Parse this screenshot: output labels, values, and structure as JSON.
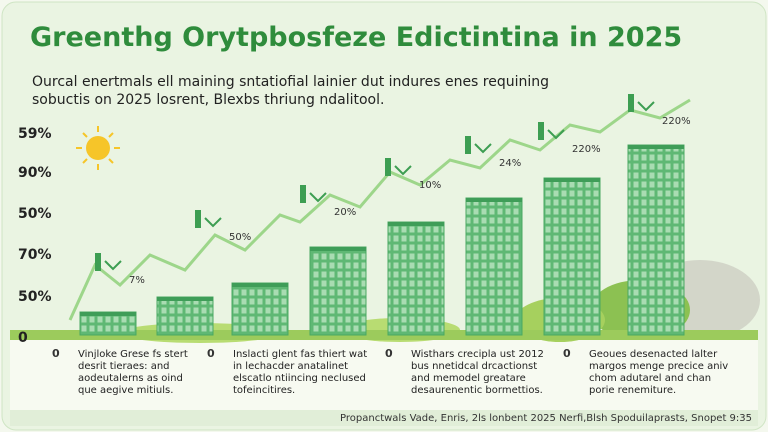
{
  "header": {
    "title": "Greenthg Orytpbosfeze Edictintina in 2025",
    "subtitle": [
      "Ourcal enertmals ell maining sntatiofial lainier dut indures enes requining",
      "sobuctis on 2025 losrent, Blexbs thriung ndalitool."
    ]
  },
  "axis_labels": [
    "59%",
    "90%",
    "50%",
    "70%",
    "50%",
    "0"
  ],
  "annotations": [
    "7%",
    "50%",
    "20%",
    "10%",
    "24%",
    "220%",
    "220%"
  ],
  "notes": [
    {
      "bullet": "0",
      "lines": [
        "Vinjloke Grese fs stert",
        "desrit tieraes: and",
        "aodeutalerns as oind",
        "que aegive mitiuls."
      ]
    },
    {
      "bullet": "0",
      "lines": [
        "Inslacti glent fas thiert wat",
        "in lechacder anatalinet",
        "elscatlo ntiincing neclused",
        "tofeincitires."
      ]
    },
    {
      "bullet": "0",
      "lines": [
        "Wisthars crecipla ust 2012",
        "bus nnetidcal drcactionst",
        "and memodel greatare",
        "desaurenentic bormettios."
      ]
    },
    {
      "bullet": "0",
      "lines": [
        "Geoues desenacted lalter",
        "margos menge precice aniv",
        "chom adutarel and chan",
        "porie renemiture."
      ]
    }
  ],
  "footer": "Propanctwals Vade, Enris, 2ls lonbent 2025 Nerfi,Blsh Spoduilaprasts, Snopet 9:35"
}
